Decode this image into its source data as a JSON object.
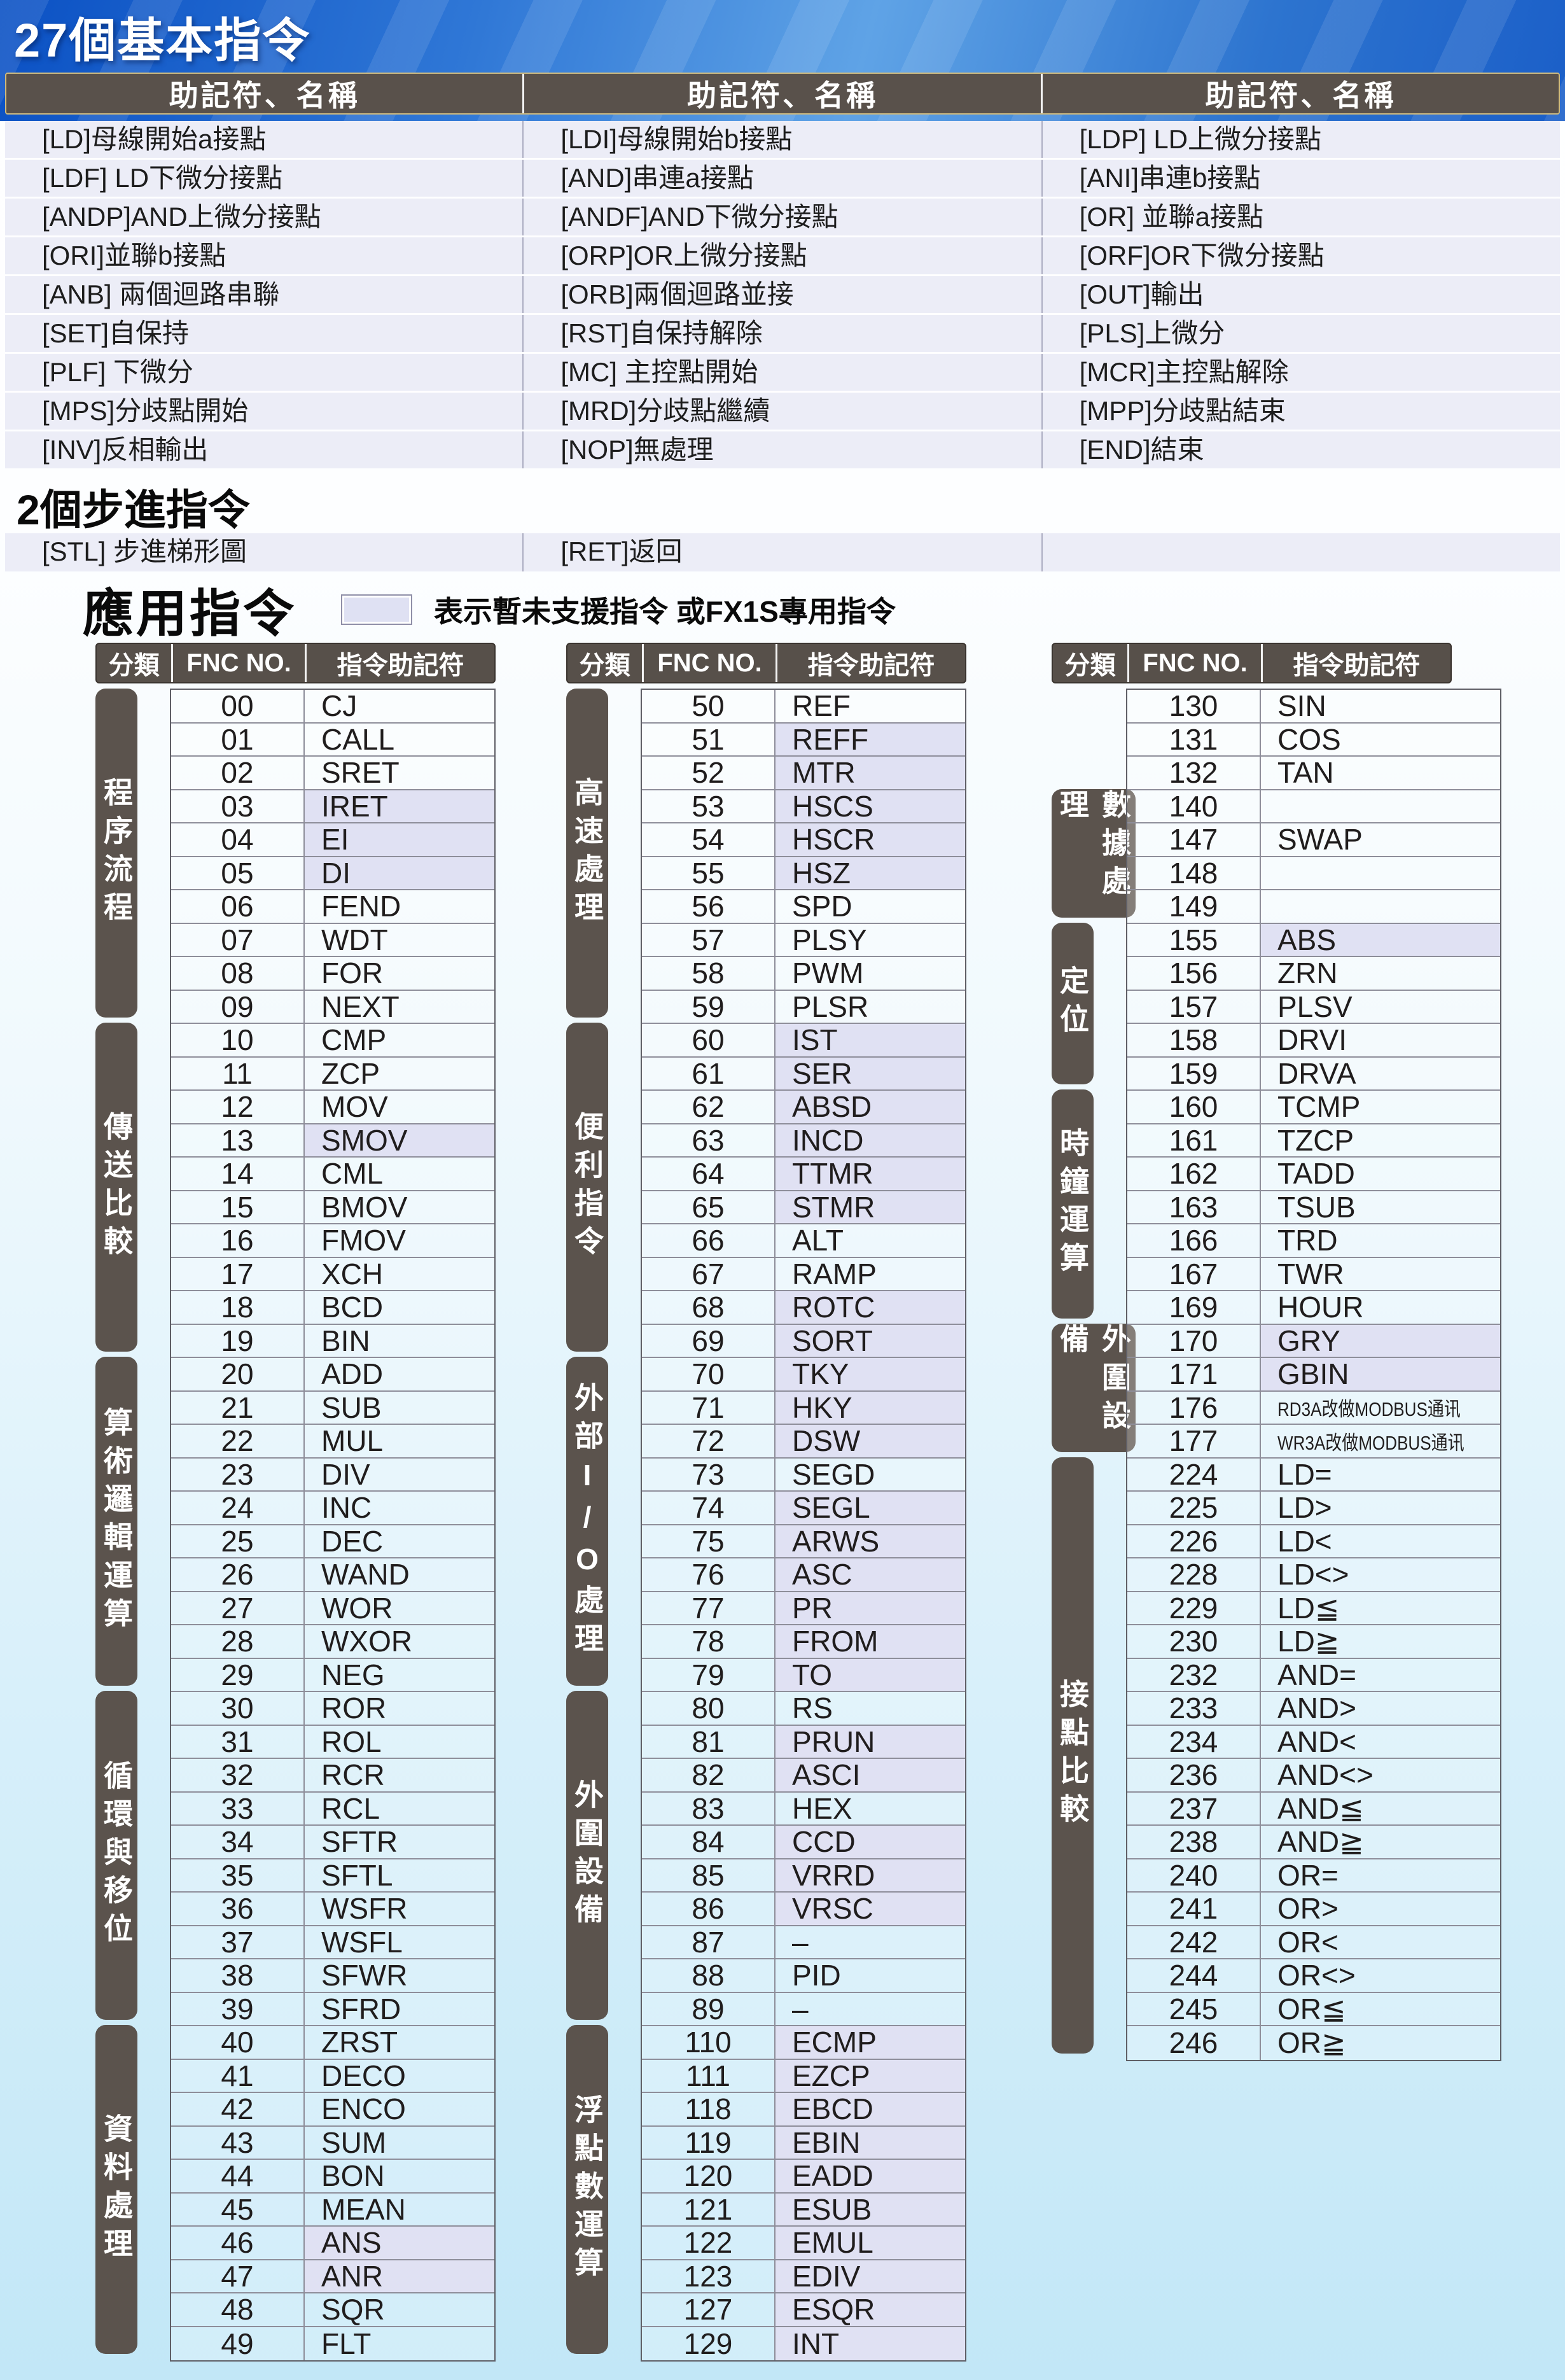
{
  "titles": {
    "basic": "27個基本指令",
    "step": "2個步進指令",
    "app": "應用指令",
    "legend": "表示暫未支援指令 或FX1S專用指令"
  },
  "colors": {
    "band_blue": "#2f77d6",
    "table_header_dark": "#57504a",
    "category_dark": "#5b534d",
    "basic_row_bg": "#ecedf7",
    "highlight_lavender": "#e0e1f3",
    "page_bottom_cyan": "#c2e7f7"
  },
  "basic_table": {
    "header_label": "助記符、名稱",
    "columns": [
      [
        "[LD]母線開始a接點",
        "[LDF] LD下微分接點",
        "[ANDP]AND上微分接點",
        "[ORI]並聯b接點",
        "[ANB] 兩個迴路串聯",
        "[SET]自保持",
        "[PLF] 下微分",
        "[MPS]分歧點開始",
        "[INV]反相輸出"
      ],
      [
        "[LDI]母線開始b接點",
        "[AND]串連a接點",
        "[ANDF]AND下微分接點",
        "[ORP]OR上微分接點",
        "[ORB]兩個迴路並接",
        "[RST]自保持解除",
        "[MC] 主控點開始",
        "[MRD]分歧點繼續",
        "[NOP]無處理"
      ],
      [
        "[LDP] LD上微分接點",
        "[ANI]串連b接點",
        "[OR] 並聯a接點",
        "[ORF]OR下微分接點",
        "[OUT]輸出",
        "[PLS]上微分",
        "[MCR]主控點解除",
        "[MPP]分歧點結束",
        "[END]結束"
      ]
    ]
  },
  "step_table": {
    "cells": [
      "[STL] 步進梯形圖",
      "[RET]返回",
      ""
    ]
  },
  "app_header": {
    "cat": "分類",
    "fnc": "FNC NO.",
    "mn": "指令助記符"
  },
  "app_tables": [
    {
      "groups": [
        {
          "label": "程序流程",
          "rows": [
            [
              "00",
              "CJ",
              false
            ],
            [
              "01",
              "CALL",
              false
            ],
            [
              "02",
              "SRET",
              false
            ],
            [
              "03",
              "IRET",
              true
            ],
            [
              "04",
              "EI",
              true
            ],
            [
              "05",
              "DI",
              true
            ],
            [
              "06",
              "FEND",
              false
            ],
            [
              "07",
              "WDT",
              false
            ],
            [
              "08",
              "FOR",
              false
            ],
            [
              "09",
              "NEXT",
              false
            ]
          ]
        },
        {
          "label": "傳送比較",
          "rows": [
            [
              "10",
              "CMP",
              false
            ],
            [
              "11",
              "ZCP",
              false
            ],
            [
              "12",
              "MOV",
              false
            ],
            [
              "13",
              "SMOV",
              true
            ],
            [
              "14",
              "CML",
              false
            ],
            [
              "15",
              "BMOV",
              false
            ],
            [
              "16",
              "FMOV",
              false
            ],
            [
              "17",
              "XCH",
              false
            ],
            [
              "18",
              "BCD",
              false
            ],
            [
              "19",
              "BIN",
              false
            ]
          ]
        },
        {
          "label": "算術邏輯運算",
          "rows": [
            [
              "20",
              "ADD",
              false
            ],
            [
              "21",
              "SUB",
              false
            ],
            [
              "22",
              "MUL",
              false
            ],
            [
              "23",
              "DIV",
              false
            ],
            [
              "24",
              "INC",
              false
            ],
            [
              "25",
              "DEC",
              false
            ],
            [
              "26",
              "WAND",
              false
            ],
            [
              "27",
              "WOR",
              false
            ],
            [
              "28",
              "WXOR",
              false
            ],
            [
              "29",
              "NEG",
              false
            ]
          ]
        },
        {
          "label": "循環與移位",
          "rows": [
            [
              "30",
              "ROR",
              false
            ],
            [
              "31",
              "ROL",
              false
            ],
            [
              "32",
              "RCR",
              false
            ],
            [
              "33",
              "RCL",
              false
            ],
            [
              "34",
              "SFTR",
              false
            ],
            [
              "35",
              "SFTL",
              false
            ],
            [
              "36",
              "WSFR",
              false
            ],
            [
              "37",
              "WSFL",
              false
            ],
            [
              "38",
              "SFWR",
              false
            ],
            [
              "39",
              "SFRD",
              false
            ]
          ]
        },
        {
          "label": "資料處理",
          "rows": [
            [
              "40",
              "ZRST",
              false
            ],
            [
              "41",
              "DECO",
              false
            ],
            [
              "42",
              "ENCO",
              false
            ],
            [
              "43",
              "SUM",
              false
            ],
            [
              "44",
              "BON",
              false
            ],
            [
              "45",
              "MEAN",
              false
            ],
            [
              "46",
              "ANS",
              true
            ],
            [
              "47",
              "ANR",
              true
            ],
            [
              "48",
              "SQR",
              false
            ],
            [
              "49",
              "FLT",
              false
            ]
          ]
        }
      ]
    },
    {
      "groups": [
        {
          "label": "高速處理",
          "rows": [
            [
              "50",
              "REF",
              false
            ],
            [
              "51",
              "REFF",
              true
            ],
            [
              "52",
              "MTR",
              true
            ],
            [
              "53",
              "HSCS",
              true
            ],
            [
              "54",
              "HSCR",
              true
            ],
            [
              "55",
              "HSZ",
              true
            ],
            [
              "56",
              "SPD",
              false
            ],
            [
              "57",
              "PLSY",
              false
            ],
            [
              "58",
              "PWM",
              false
            ],
            [
              "59",
              "PLSR",
              false
            ]
          ]
        },
        {
          "label": "便利指令",
          "rows": [
            [
              "60",
              "IST",
              true
            ],
            [
              "61",
              "SER",
              true
            ],
            [
              "62",
              "ABSD",
              true
            ],
            [
              "63",
              "INCD",
              true
            ],
            [
              "64",
              "TTMR",
              true
            ],
            [
              "65",
              "STMR",
              true
            ],
            [
              "66",
              "ALT",
              false
            ],
            [
              "67",
              "RAMP",
              false
            ],
            [
              "68",
              "ROTC",
              true
            ],
            [
              "69",
              "SORT",
              true
            ]
          ]
        },
        {
          "label": "外部I/O處理",
          "rows": [
            [
              "70",
              "TKY",
              true
            ],
            [
              "71",
              "HKY",
              true
            ],
            [
              "72",
              "DSW",
              true
            ],
            [
              "73",
              "SEGD",
              false
            ],
            [
              "74",
              "SEGL",
              true
            ],
            [
              "75",
              "ARWS",
              true
            ],
            [
              "76",
              "ASC",
              true
            ],
            [
              "77",
              "PR",
              true
            ],
            [
              "78",
              "FROM",
              true
            ],
            [
              "79",
              "TO",
              true
            ]
          ]
        },
        {
          "label": "外圍設備",
          "rows": [
            [
              "80",
              "RS",
              false
            ],
            [
              "81",
              "PRUN",
              true
            ],
            [
              "82",
              "ASCI",
              true
            ],
            [
              "83",
              "HEX",
              false
            ],
            [
              "84",
              "CCD",
              true
            ],
            [
              "85",
              "VRRD",
              true
            ],
            [
              "86",
              "VRSC",
              true
            ],
            [
              "87",
              "–",
              false
            ],
            [
              "88",
              "PID",
              false
            ],
            [
              "89",
              "–",
              false
            ]
          ]
        },
        {
          "label": "浮點數運算",
          "rows": [
            [
              "110",
              "ECMP",
              true
            ],
            [
              "111",
              "EZCP",
              true
            ],
            [
              "118",
              "EBCD",
              true
            ],
            [
              "119",
              "EBIN",
              true
            ],
            [
              "120",
              "EADD",
              true
            ],
            [
              "121",
              "ESUB",
              true
            ],
            [
              "122",
              "EMUL",
              true
            ],
            [
              "123",
              "EDIV",
              true
            ],
            [
              "127",
              "ESQR",
              true
            ],
            [
              "129",
              "INT",
              true
            ]
          ]
        }
      ]
    },
    {
      "groups": [
        {
          "label": "",
          "rows": [
            [
              "130",
              "SIN",
              false
            ],
            [
              "131",
              "COS",
              false
            ],
            [
              "132",
              "TAN",
              false
            ]
          ]
        },
        {
          "label": "數據處理",
          "rows": [
            [
              "140",
              "",
              false
            ],
            [
              "147",
              "SWAP",
              false
            ],
            [
              "148",
              "",
              false
            ],
            [
              "149",
              "",
              false
            ]
          ]
        },
        {
          "label": "定位",
          "rows": [
            [
              "155",
              "ABS",
              true
            ],
            [
              "156",
              "ZRN",
              false
            ],
            [
              "157",
              "PLSV",
              false
            ],
            [
              "158",
              "DRVI",
              false
            ],
            [
              "159",
              "DRVA",
              false
            ]
          ]
        },
        {
          "label": "時鐘運算",
          "rows": [
            [
              "160",
              "TCMP",
              false
            ],
            [
              "161",
              "TZCP",
              false
            ],
            [
              "162",
              "TADD",
              false
            ],
            [
              "163",
              "TSUB",
              false
            ],
            [
              "166",
              "TRD",
              false
            ],
            [
              "167",
              "TWR",
              false
            ],
            [
              "169",
              "HOUR",
              false
            ]
          ]
        },
        {
          "label": "外圍設備",
          "rows": [
            [
              "170",
              "GRY",
              true
            ],
            [
              "171",
              "GBIN",
              true
            ],
            [
              "176",
              "RD3A改做MODBUS通讯",
              false
            ],
            [
              "177",
              "WR3A改做MODBUS通讯",
              false
            ]
          ]
        },
        {
          "label": "接點比較",
          "rows": [
            [
              "224",
              "LD=",
              false
            ],
            [
              "225",
              "LD>",
              false
            ],
            [
              "226",
              "LD<",
              false
            ],
            [
              "228",
              "LD<>",
              false
            ],
            [
              "229",
              "LD≦",
              false
            ],
            [
              "230",
              "LD≧",
              false
            ],
            [
              "232",
              "AND=",
              false
            ],
            [
              "233",
              "AND>",
              false
            ],
            [
              "234",
              "AND<",
              false
            ],
            [
              "236",
              "AND<>",
              false
            ],
            [
              "237",
              "AND≦",
              false
            ],
            [
              "238",
              "AND≧",
              false
            ],
            [
              "240",
              "OR=",
              false
            ],
            [
              "241",
              "OR>",
              false
            ],
            [
              "242",
              "OR<",
              false
            ],
            [
              "244",
              "OR<>",
              false
            ],
            [
              "245",
              "OR≦",
              false
            ],
            [
              "246",
              "OR≧",
              false
            ]
          ]
        }
      ]
    }
  ]
}
